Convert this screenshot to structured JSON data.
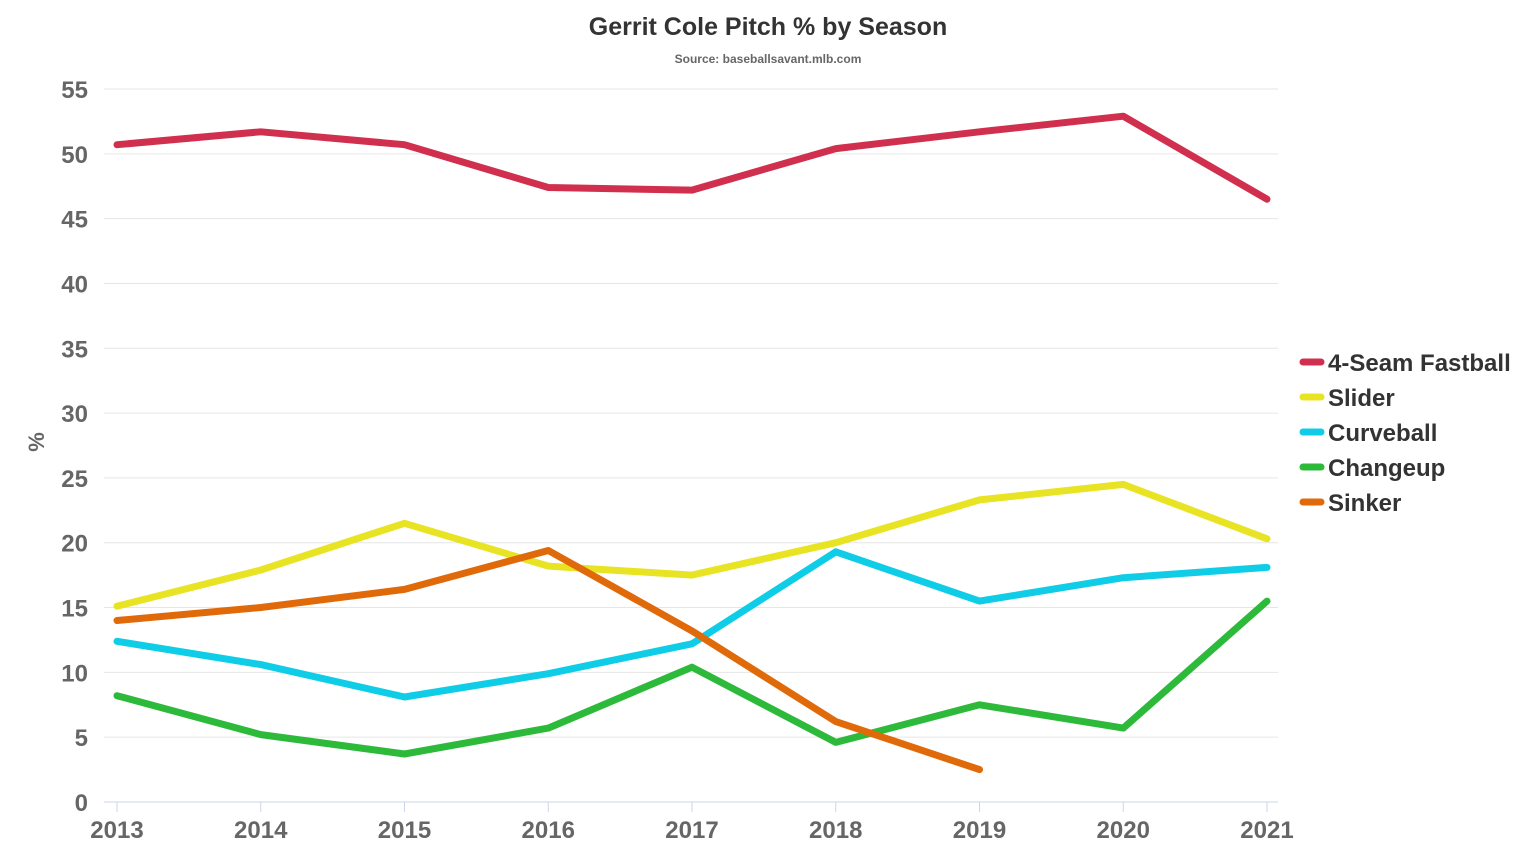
{
  "chart_data": {
    "type": "line",
    "title": "Gerrit Cole Pitch % by Season",
    "subtitle": "Source: baseballsavant.mlb.com",
    "xlabel": "",
    "ylabel": "%",
    "categories": [
      "2013",
      "2014",
      "2015",
      "2016",
      "2017",
      "2018",
      "2019",
      "2020",
      "2021"
    ],
    "ylim": [
      0,
      55
    ],
    "yticks": [
      0,
      5,
      10,
      15,
      20,
      25,
      30,
      35,
      40,
      45,
      50,
      55
    ],
    "grid": true,
    "legend": "right",
    "series": [
      {
        "name": "4-Seam Fastball",
        "color": "#d0304e",
        "values": [
          50.7,
          51.7,
          50.7,
          47.4,
          47.2,
          50.4,
          51.7,
          52.9,
          46.5
        ]
      },
      {
        "name": "Slider",
        "color": "#e8e424",
        "values": [
          15.1,
          17.9,
          21.5,
          18.2,
          17.5,
          20.0,
          23.3,
          24.5,
          20.3
        ]
      },
      {
        "name": "Curveball",
        "color": "#0fcde6",
        "values": [
          12.4,
          10.6,
          8.1,
          9.9,
          12.2,
          19.3,
          15.5,
          17.3,
          18.1
        ]
      },
      {
        "name": "Changeup",
        "color": "#2dba3a",
        "values": [
          8.2,
          5.2,
          3.7,
          5.7,
          10.4,
          4.6,
          7.5,
          5.7,
          15.5
        ]
      },
      {
        "name": "Sinker",
        "color": "#e06a0a",
        "values": [
          14.0,
          15.0,
          16.4,
          19.4,
          13.2,
          6.2,
          2.5,
          null,
          null
        ]
      }
    ]
  }
}
